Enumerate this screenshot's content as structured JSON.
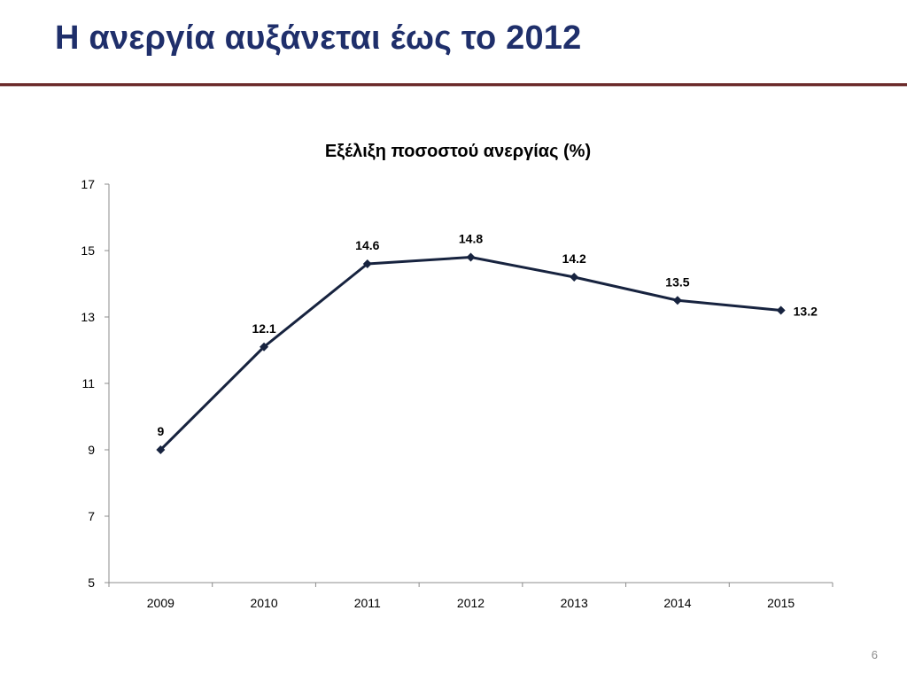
{
  "slide": {
    "title": "Η ανεργία αυξάνεται έως το 2012",
    "page_number": "6"
  },
  "colors": {
    "title": "#1f2f6b",
    "rule": "#6b2a2a",
    "series_line": "#17233f",
    "axis": "#8c8c8c"
  },
  "chart_data": {
    "type": "line",
    "title": "Εξέλιξη ποσοστού ανεργίας (%)",
    "xlabel": "",
    "ylabel": "",
    "categories": [
      "2009",
      "2010",
      "2011",
      "2012",
      "2013",
      "2014",
      "2015"
    ],
    "series": [
      {
        "values": [
          9,
          12.1,
          14.6,
          14.8,
          14.2,
          13.5,
          13.2
        ],
        "labels": [
          "9",
          "12.1",
          "14.6",
          "14.8",
          "14.2",
          "13.5",
          "13.2"
        ],
        "marker": "diamond"
      }
    ],
    "ylim": [
      5,
      17
    ],
    "yticks": [
      5,
      7,
      9,
      11,
      13,
      15,
      17
    ],
    "grid": false,
    "legend": "none"
  }
}
